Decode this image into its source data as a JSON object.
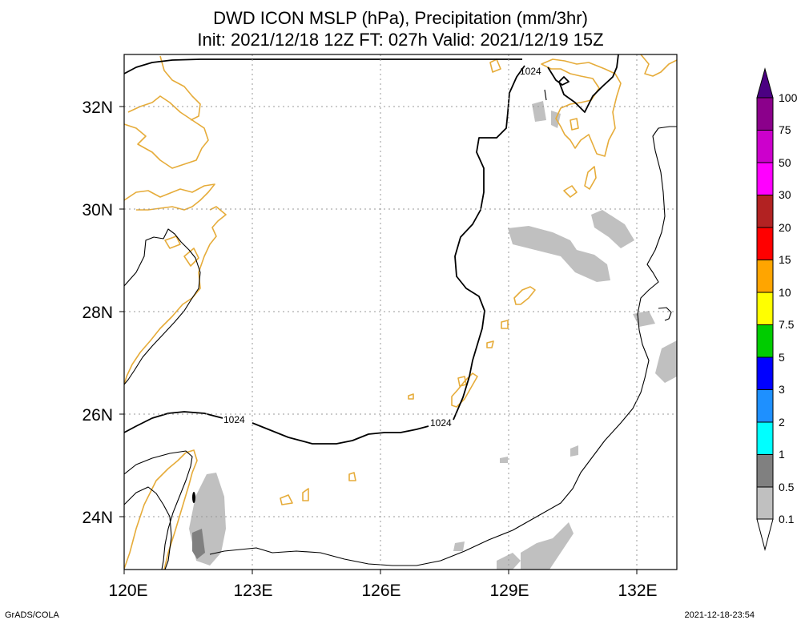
{
  "title": {
    "line1": "DWD ICON MSLP (hPa), Precipitation (mm/3hr)",
    "line2": "Init: 2021/12/18 12Z  FT: 027h  Valid: 2021/12/19 15Z"
  },
  "map": {
    "lon_labels": [
      "120E",
      "123E",
      "126E",
      "129E",
      "132E"
    ],
    "lat_labels": [
      "32N",
      "30N",
      "28N",
      "26N",
      "24N"
    ],
    "isobar_labels": [
      "1024",
      "1024",
      "1024"
    ],
    "coast_color": "#e6ac3a",
    "isobar_color": "#000000",
    "precip_light_color": "#c0c0c0",
    "precip_mid_color": "#808080"
  },
  "colorbar": {
    "labels": [
      "100",
      "75",
      "50",
      "30",
      "20",
      "15",
      "10",
      "7.5",
      "5",
      "3",
      "2",
      "1",
      "0.5",
      "0.1"
    ],
    "colors": [
      "#8b008b",
      "#cc00cc",
      "#ff00ff",
      "#b22222",
      "#ff0000",
      "#ffa500",
      "#ffff00",
      "#00cc00",
      "#0000ff",
      "#1e90ff",
      "#00ffff",
      "#808080",
      "#c0c0c0"
    ],
    "top_color": "#4b0082",
    "bottom_color": "#ffffff"
  },
  "footer": {
    "left": "GrADS/COLA",
    "right": "2021-12-18-23:54"
  }
}
